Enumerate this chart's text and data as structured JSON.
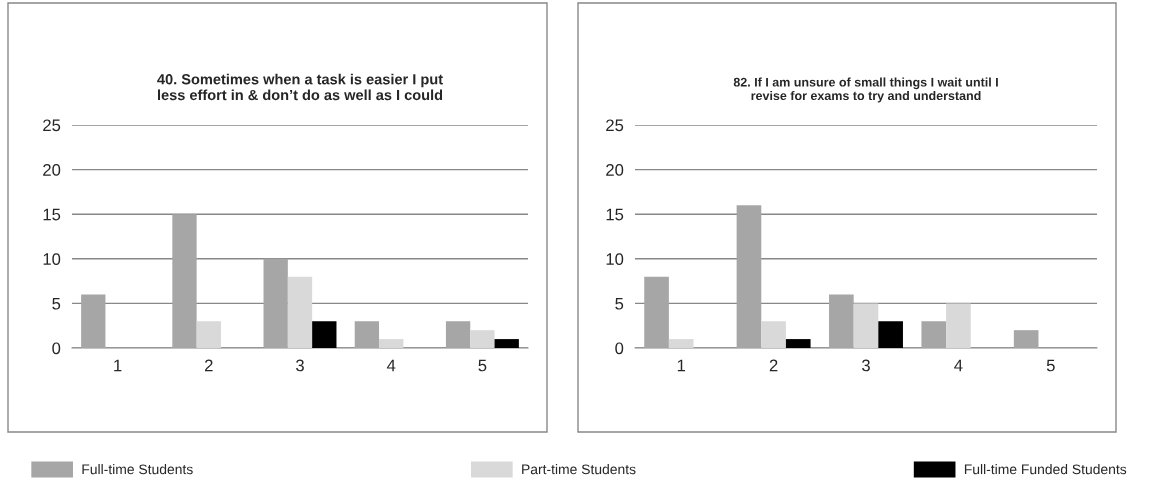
{
  "chart_data": [
    {
      "type": "bar",
      "title": "40. Sometimes when a task is easier I put\nless effort in & don’t do as well as I could",
      "categories": [
        "1",
        "2",
        "3",
        "4",
        "5"
      ],
      "series": [
        {
          "name": "Full-time Students",
          "color": "#a6a6a6",
          "values": [
            6,
            15,
            10,
            3,
            3
          ]
        },
        {
          "name": "Part-time Students",
          "color": "#d9d9d9",
          "values": [
            0,
            3,
            8,
            1,
            2
          ]
        },
        {
          "name": "Full-time Funded Students",
          "color": "#000000",
          "values": [
            0,
            0,
            3,
            0,
            1
          ]
        }
      ],
      "ylim": [
        0,
        25
      ],
      "yticks": [
        0,
        5,
        10,
        15,
        20,
        25
      ],
      "grid": "y",
      "legend": "bottom"
    },
    {
      "type": "bar",
      "title": "82. If I am unsure of small things I wait until I\nrevise for exams to try and understand",
      "categories": [
        "1",
        "2",
        "3",
        "4",
        "5"
      ],
      "series": [
        {
          "color": "#a6a6a6",
          "values": [
            8,
            16,
            6,
            3,
            2
          ]
        },
        {
          "color": "#d9d9d9",
          "values": [
            1,
            3,
            5,
            5,
            0
          ]
        },
        {
          "color": "#000000",
          "values": [
            0,
            1,
            3,
            0,
            0
          ]
        }
      ],
      "ylim": [
        0,
        25
      ],
      "yticks": [
        0,
        5,
        10,
        15,
        20,
        25
      ],
      "grid": "y"
    }
  ]
}
